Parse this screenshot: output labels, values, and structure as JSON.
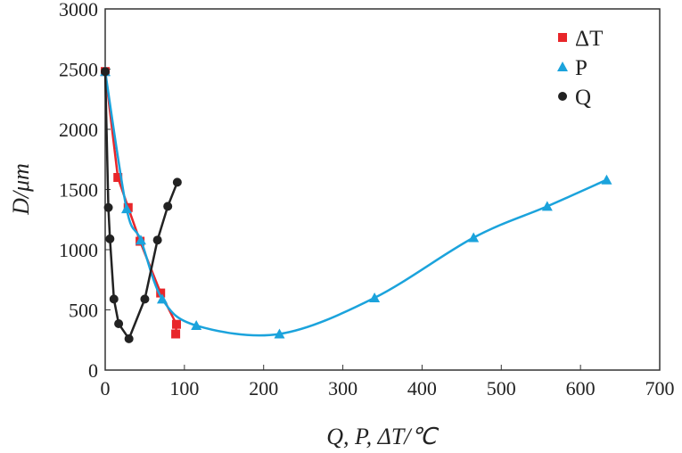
{
  "chart_data": {
    "type": "scatter",
    "title": "",
    "xlabel": "Q, P, ΔT/℃",
    "ylabel": "D/μm",
    "xlim": [
      0,
      700
    ],
    "ylim": [
      0,
      3000
    ],
    "xticks": [
      0,
      100,
      200,
      300,
      400,
      500,
      600,
      700
    ],
    "yticks": [
      0,
      500,
      1000,
      1500,
      2000,
      2500,
      3000
    ],
    "legend_position": "top-right",
    "series": [
      {
        "name": "ΔT",
        "color": "#e8262a",
        "marker": "square",
        "fit": "line",
        "x": [
          0,
          16,
          29,
          44,
          70,
          90,
          89
        ],
        "y": [
          2480,
          1600,
          1350,
          1070,
          640,
          380,
          300
        ]
      },
      {
        "name": "P",
        "color": "#1ba3dc",
        "marker": "triangle",
        "fit": "smooth",
        "x": [
          0,
          27,
          45,
          72,
          115,
          220,
          340,
          465,
          558,
          633
        ],
        "y": [
          2480,
          1340,
          1080,
          590,
          370,
          300,
          600,
          1100,
          1360,
          1580
        ]
      },
      {
        "name": "Q",
        "color": "#222222",
        "marker": "circle",
        "fit": "line",
        "x": [
          0,
          4,
          6,
          11,
          17,
          30,
          50,
          66,
          79,
          91
        ],
        "y": [
          2480,
          1350,
          1090,
          590,
          385,
          260,
          590,
          1080,
          1360,
          1560
        ]
      }
    ]
  }
}
